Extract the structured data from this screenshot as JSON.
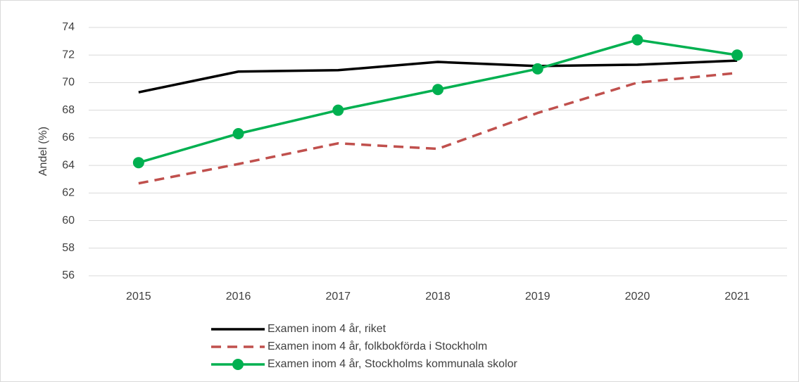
{
  "chart_data": {
    "type": "line",
    "y_label": "Andel (%)",
    "categories": [
      "2015",
      "2016",
      "2017",
      "2018",
      "2019",
      "2020",
      "2021"
    ],
    "series": [
      {
        "name": "Examen inom 4 år, riket",
        "color": "#000000",
        "dashed": false,
        "marker": false,
        "values": [
          69.3,
          70.8,
          70.9,
          71.5,
          71.2,
          71.3,
          71.6
        ]
      },
      {
        "name": "Examen inom 4 år, folkbokförda i Stockholm",
        "color": "#c0504d",
        "dashed": true,
        "marker": false,
        "values": [
          62.7,
          64.1,
          65.6,
          65.2,
          67.8,
          70.0,
          70.7
        ]
      },
      {
        "name": "Examen inom 4 år, Stockholms kommunala skolor",
        "color": "#00b050",
        "dashed": false,
        "marker": true,
        "values": [
          64.2,
          66.3,
          68.0,
          69.5,
          71.0,
          73.1,
          72.0
        ]
      }
    ],
    "ylim": [
      56,
      74
    ],
    "yticks": [
      56,
      58,
      60,
      62,
      64,
      66,
      68,
      70,
      72,
      74
    ],
    "grid": true,
    "legend": "bottom"
  }
}
